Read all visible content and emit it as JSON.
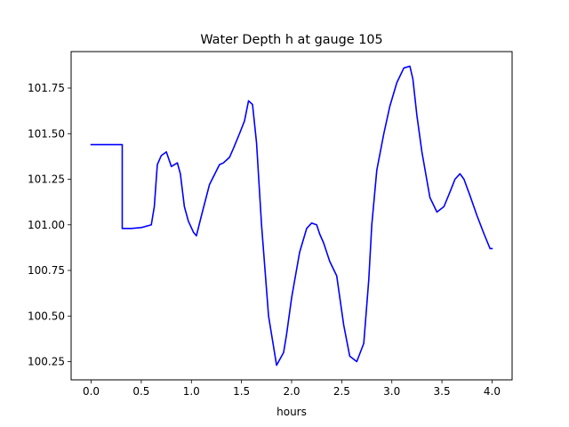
{
  "chart_data": {
    "type": "line",
    "title": "Water Depth h at gauge 105",
    "xlabel": "hours",
    "ylabel": "",
    "xlim": [
      -0.2,
      4.2
    ],
    "ylim": [
      100.15,
      101.95
    ],
    "xticks": [
      0.0,
      0.5,
      1.0,
      1.5,
      2.0,
      2.5,
      3.0,
      3.5,
      4.0
    ],
    "xtick_labels": [
      "0.0",
      "0.5",
      "1.0",
      "1.5",
      "2.0",
      "2.5",
      "3.0",
      "3.5",
      "4.0"
    ],
    "yticks": [
      100.25,
      100.5,
      100.75,
      101.0,
      101.25,
      101.5,
      101.75
    ],
    "ytick_labels": [
      "100.25",
      "100.50",
      "100.75",
      "101.00",
      "101.25",
      "101.50",
      "101.75"
    ],
    "grid": false,
    "series": [
      {
        "color": "#0000ff",
        "x": [
          0.0,
          0.1,
          0.2,
          0.3,
          0.31,
          0.31,
          0.4,
          0.5,
          0.6,
          0.63,
          0.66,
          0.7,
          0.75,
          0.8,
          0.86,
          0.89,
          0.93,
          0.97,
          1.02,
          1.05,
          1.1,
          1.18,
          1.28,
          1.32,
          1.38,
          1.42,
          1.48,
          1.53,
          1.57,
          1.61,
          1.65,
          1.7,
          1.77,
          1.85,
          1.92,
          1.95,
          2.0,
          2.08,
          2.15,
          2.2,
          2.25,
          2.28,
          2.32,
          2.38,
          2.45,
          2.52,
          2.58,
          2.65,
          2.72,
          2.77,
          2.8,
          2.85,
          2.92,
          2.98,
          3.05,
          3.12,
          3.18,
          3.21,
          3.25,
          3.3,
          3.38,
          3.45,
          3.52,
          3.58,
          3.63,
          3.68,
          3.72,
          3.78,
          3.85,
          3.92,
          3.98,
          4.0
        ],
        "y": [
          101.44,
          101.44,
          101.44,
          101.44,
          101.44,
          100.98,
          100.98,
          100.985,
          101.0,
          101.1,
          101.33,
          101.38,
          101.4,
          101.32,
          101.34,
          101.28,
          101.1,
          101.02,
          100.96,
          100.94,
          101.05,
          101.22,
          101.33,
          101.34,
          101.37,
          101.42,
          101.5,
          101.57,
          101.68,
          101.66,
          101.45,
          101.0,
          100.5,
          100.23,
          100.3,
          100.4,
          100.6,
          100.85,
          100.98,
          101.01,
          101.0,
          100.95,
          100.9,
          100.8,
          100.72,
          100.45,
          100.28,
          100.25,
          100.35,
          100.7,
          101.0,
          101.3,
          101.5,
          101.65,
          101.78,
          101.86,
          101.87,
          101.8,
          101.6,
          101.4,
          101.15,
          101.07,
          101.1,
          101.18,
          101.25,
          101.28,
          101.25,
          101.16,
          101.05,
          100.95,
          100.87,
          100.87
        ]
      }
    ]
  }
}
